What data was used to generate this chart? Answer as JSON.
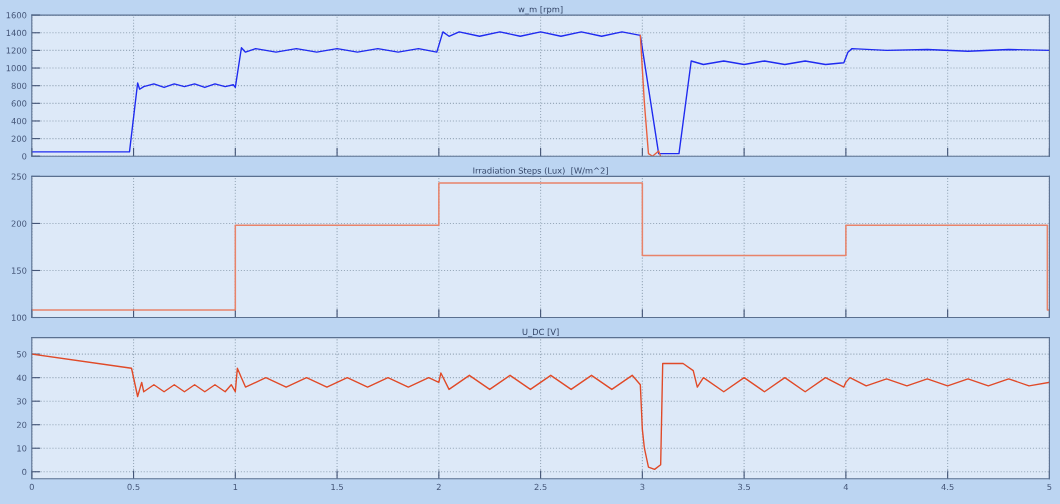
{
  "chart_data": [
    {
      "type": "line",
      "title": "w_m [rpm]",
      "xlim": [
        0,
        5
      ],
      "xticks": [
        0,
        0.5,
        1,
        1.5,
        2,
        2.5,
        3,
        3.5,
        4,
        4.5,
        5
      ],
      "ylim": [
        0,
        1600
      ],
      "yticks": [
        0,
        200,
        400,
        600,
        800,
        1000,
        1200,
        1400,
        1600
      ],
      "grid": true,
      "tick_labels": "y",
      "series": [
        {
          "color": "#1f2bf0",
          "x": [
            0,
            0.48,
            0.52,
            0.53,
            0.55,
            0.6,
            0.65,
            0.7,
            0.75,
            0.8,
            0.85,
            0.9,
            0.95,
            0.99,
            1.0,
            1.03,
            1.05,
            1.1,
            1.2,
            1.3,
            1.4,
            1.5,
            1.6,
            1.7,
            1.8,
            1.9,
            1.99,
            2.02,
            2.05,
            2.1,
            2.2,
            2.3,
            2.4,
            2.5,
            2.6,
            2.7,
            2.8,
            2.9,
            2.99,
            3.08,
            3.18,
            3.24,
            3.3,
            3.4,
            3.5,
            3.6,
            3.7,
            3.8,
            3.9,
            3.99,
            4.01,
            4.03,
            4.2,
            4.4,
            4.6,
            4.8,
            5.0
          ],
          "values": [
            50,
            50,
            830,
            760,
            790,
            820,
            780,
            820,
            790,
            820,
            780,
            820,
            790,
            810,
            780,
            1230,
            1180,
            1220,
            1180,
            1220,
            1180,
            1220,
            1180,
            1220,
            1180,
            1220,
            1180,
            1410,
            1360,
            1410,
            1360,
            1410,
            1360,
            1410,
            1360,
            1410,
            1360,
            1410,
            1370,
            30,
            30,
            1080,
            1040,
            1080,
            1040,
            1080,
            1040,
            1080,
            1040,
            1060,
            1180,
            1220,
            1200,
            1210,
            1190,
            1210,
            1200
          ]
        },
        {
          "color": "#e8603f",
          "x": [
            2.99,
            3.01,
            3.03,
            3.05,
            3.08,
            3.09
          ],
          "values": [
            1370,
            600,
            30,
            0,
            60,
            0
          ]
        }
      ]
    },
    {
      "type": "step",
      "title": "Irradiation Steps (Lux)  [W/m^2]",
      "xlim": [
        0,
        5
      ],
      "xticks": [
        0,
        0.5,
        1,
        1.5,
        2,
        2.5,
        3,
        3.5,
        4,
        4.5,
        5
      ],
      "ylim": [
        100,
        250
      ],
      "yticks": [
        100,
        150,
        200,
        250
      ],
      "grid": true,
      "tick_labels": "y",
      "series": [
        {
          "color": "#e8836a",
          "x": [
            0,
            1,
            2,
            3,
            4,
            4.99,
            5
          ],
          "values": [
            108,
            198,
            243,
            166,
            198,
            108,
            108
          ]
        }
      ]
    },
    {
      "type": "line",
      "title": "U_DC [V]",
      "xlim": [
        0,
        5
      ],
      "xticks": [
        0,
        0.5,
        1,
        1.5,
        2,
        2.5,
        3,
        3.5,
        4,
        4.5,
        5
      ],
      "ylim": [
        -3,
        57
      ],
      "yticks": [
        0,
        10,
        20,
        30,
        40,
        50
      ],
      "grid": true,
      "series": [
        {
          "color": "#e04a28",
          "x": [
            0.003,
            0.49,
            0.52,
            0.54,
            0.55,
            0.6,
            0.65,
            0.7,
            0.75,
            0.8,
            0.85,
            0.9,
            0.95,
            0.98,
            1.0,
            1.01,
            1.03,
            1.05,
            1.15,
            1.25,
            1.35,
            1.45,
            1.55,
            1.65,
            1.75,
            1.85,
            1.95,
            2.0,
            2.01,
            2.05,
            2.15,
            2.25,
            2.35,
            2.45,
            2.55,
            2.65,
            2.75,
            2.85,
            2.95,
            2.99,
            3.0,
            3.01,
            3.03,
            3.06,
            3.09,
            3.1,
            3.2,
            3.25,
            3.27,
            3.3,
            3.4,
            3.5,
            3.6,
            3.7,
            3.8,
            3.9,
            3.99,
            4.0,
            4.02,
            4.1,
            4.2,
            4.3,
            4.4,
            4.5,
            4.6,
            4.7,
            4.8,
            4.9,
            5.0
          ],
          "values": [
            50,
            44,
            32,
            38,
            34,
            37,
            34,
            37,
            34,
            37,
            34,
            37,
            34,
            37,
            34,
            44,
            40,
            36,
            40,
            36,
            40,
            36,
            40,
            36,
            40,
            36,
            40,
            38,
            42,
            35,
            41,
            35,
            41,
            35,
            41,
            35,
            41,
            35,
            41,
            37,
            18,
            10,
            2,
            1,
            3,
            46,
            46,
            43,
            36,
            40,
            34,
            40,
            34,
            40,
            34,
            40,
            36,
            38,
            40,
            36.5,
            39.5,
            36.5,
            39.5,
            36.5,
            39.5,
            36.5,
            39.5,
            36.5,
            38
          ]
        }
      ]
    }
  ]
}
